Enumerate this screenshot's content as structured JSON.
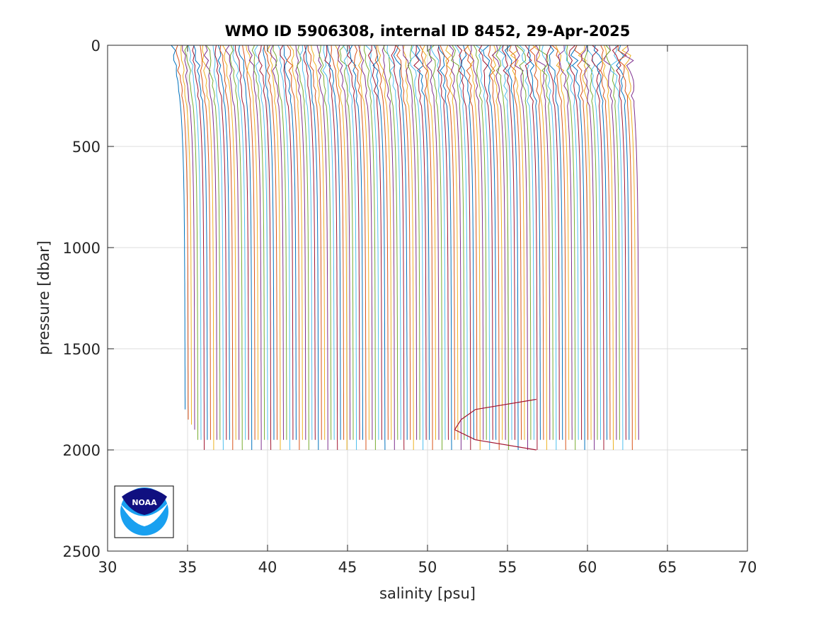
{
  "chart_data": {
    "type": "line",
    "title": "WMO ID 5906308, internal ID 8452, 29-Apr-2025",
    "xlabel": "salinity [psu]",
    "ylabel": "pressure [dbar]",
    "xlim": [
      30,
      70
    ],
    "ylim": [
      0,
      2500
    ],
    "y_reversed": true,
    "xticks": [
      30,
      35,
      40,
      45,
      50,
      55,
      60,
      65,
      70
    ],
    "yticks": [
      0,
      500,
      1000,
      1500,
      2000,
      2500
    ],
    "grid": true,
    "legend": "none",
    "series_count": 144,
    "first_profile": {
      "surface_salinity": 34.1,
      "deep_salinity": 34.8,
      "max_pressure": 1800
    },
    "profile_offset_psu": 0.2,
    "series_colors": [
      "#0072bd",
      "#d95319",
      "#edb120",
      "#7e2f8e",
      "#77ac30",
      "#4dbeee",
      "#a2142f"
    ],
    "anomalous_profile": {
      "points": [
        [
          56.8,
          1750
        ],
        [
          53.0,
          1800
        ],
        [
          52.1,
          1850
        ],
        [
          51.7,
          1900
        ],
        [
          53.0,
          1950
        ],
        [
          56.8,
          2000
        ]
      ]
    }
  },
  "logo": {
    "text": "NOAA",
    "colors": {
      "navy": "#101080",
      "sky": "#19a0f0"
    }
  }
}
